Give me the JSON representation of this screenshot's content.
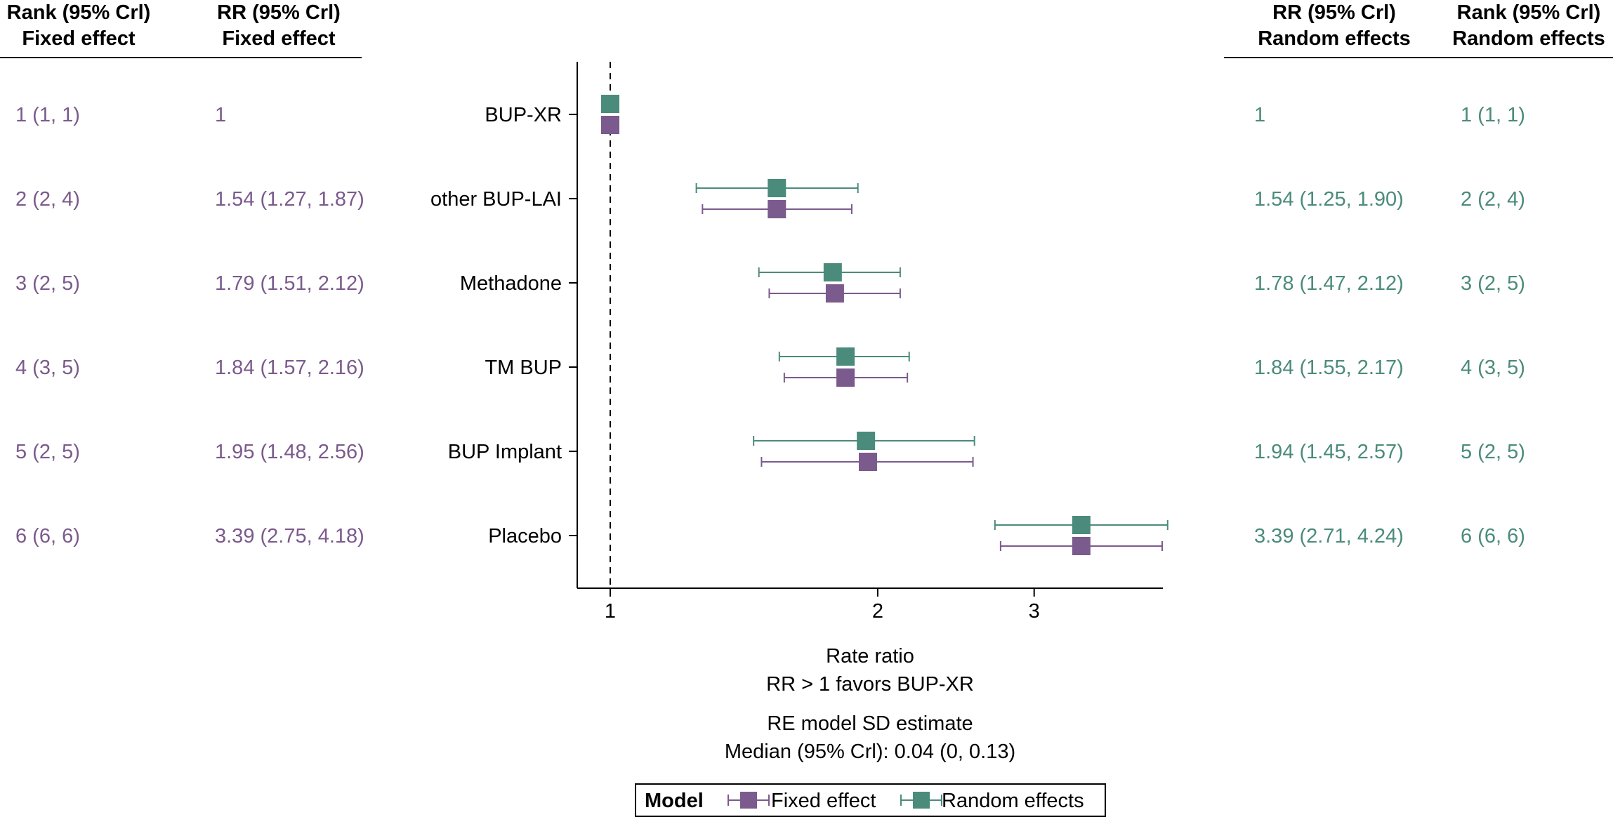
{
  "columns": {
    "fixed_rank_header": [
      "Rank (95% Crl)",
      "Fixed effect"
    ],
    "fixed_rr_header": [
      "RR (95% Crl)",
      "Fixed effect"
    ],
    "random_rr_header": [
      "RR (95% Crl)",
      "Random effects"
    ],
    "random_rank_header": [
      "Rank (95% Crl)",
      "Random effects"
    ]
  },
  "rows": [
    {
      "label": "BUP-XR",
      "fixed_rank": "1 (1, 1)",
      "fixed_rr": "1",
      "random_rr": "1",
      "random_rank": "1 (1, 1)"
    },
    {
      "label": "other BUP-LAI",
      "fixed_rank": "2 (2, 4)",
      "fixed_rr": "1.54 (1.27, 1.87)",
      "random_rr": "1.54 (1.25, 1.90)",
      "random_rank": "2 (2, 4)"
    },
    {
      "label": "Methadone",
      "fixed_rank": "3 (2, 5)",
      "fixed_rr": "1.79 (1.51, 2.12)",
      "random_rr": "1.78 (1.47, 2.12)",
      "random_rank": "3 (2, 5)"
    },
    {
      "label": "TM BUP",
      "fixed_rank": "4 (3, 5)",
      "fixed_rr": "1.84 (1.57, 2.16)",
      "random_rr": "1.84 (1.55, 2.17)",
      "random_rank": "4 (3, 5)"
    },
    {
      "label": "BUP Implant",
      "fixed_rank": "5 (2, 5)",
      "fixed_rr": "1.95 (1.48, 2.56)",
      "random_rr": "1.94 (1.45, 2.57)",
      "random_rank": "5 (2, 5)"
    },
    {
      "label": "Placebo",
      "fixed_rank": "6 (6, 6)",
      "fixed_rr": "3.39 (2.75, 4.18)",
      "random_rr": "3.39 (2.71, 4.24)",
      "random_rank": "6 (6, 6)"
    }
  ],
  "footer": {
    "line1": "Rate ratio",
    "line2": "RR > 1 favors BUP-XR",
    "line3": "RE model SD estimate",
    "line4": "Median (95% Crl):  0.04 (0, 0.13)"
  },
  "legend": {
    "title": "Model",
    "items": [
      "Fixed effect",
      "Random effects"
    ]
  },
  "colors": {
    "fixed": "#7b5a8d",
    "random": "#4b8b7b",
    "axis": "#000000"
  },
  "chart_data": {
    "type": "scatter",
    "scale": "log",
    "reference_line": 1,
    "xlabel": "Rate ratio",
    "xticks": [
      1,
      2,
      3
    ],
    "xlim": [
      0.95,
      4.6
    ],
    "categories": [
      "BUP-XR",
      "other BUP-LAI",
      "Methadone",
      "TM BUP",
      "BUP Implant",
      "Placebo"
    ],
    "series": [
      {
        "name": "Fixed effect",
        "values": [
          1,
          1.54,
          1.79,
          1.84,
          1.95,
          3.39
        ],
        "lower": [
          null,
          1.27,
          1.51,
          1.57,
          1.48,
          2.75
        ],
        "upper": [
          null,
          1.87,
          2.12,
          2.16,
          2.56,
          4.18
        ]
      },
      {
        "name": "Random effects",
        "values": [
          1,
          1.54,
          1.78,
          1.84,
          1.94,
          3.39
        ],
        "lower": [
          null,
          1.25,
          1.47,
          1.55,
          1.45,
          2.71
        ],
        "upper": [
          null,
          1.9,
          2.12,
          2.17,
          2.57,
          4.24
        ]
      }
    ]
  }
}
